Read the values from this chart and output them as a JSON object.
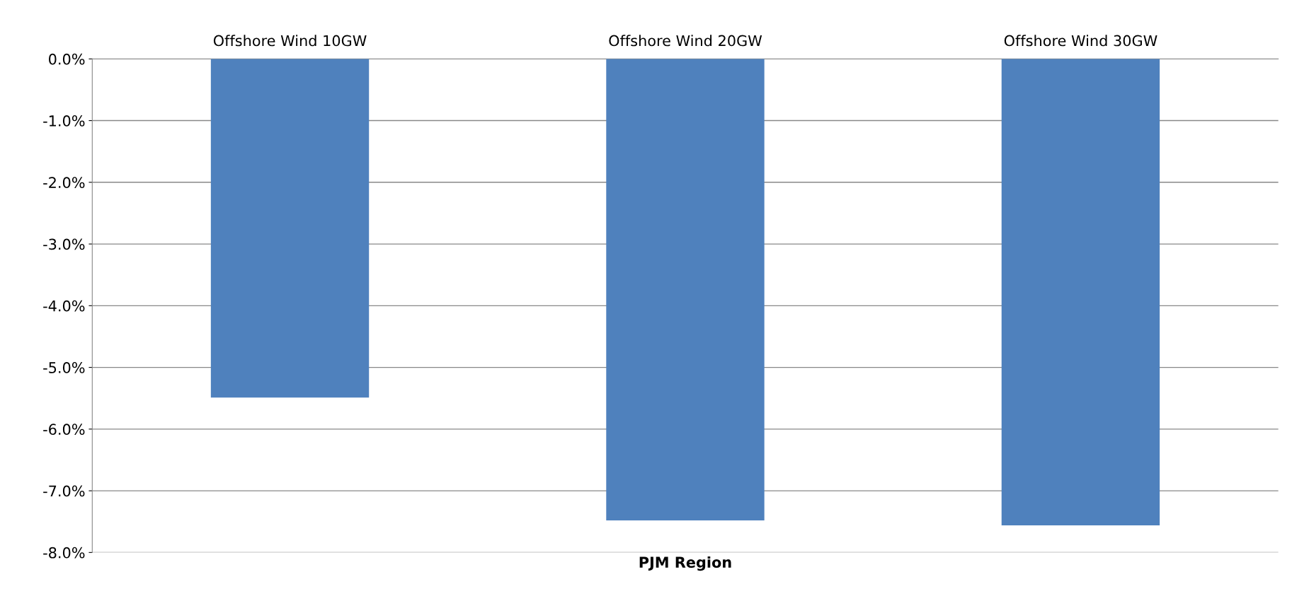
{
  "chart_data": {
    "type": "bar",
    "xlabel": "PJM Region",
    "categories": [
      "Offshore Wind 10GW",
      "Offshore Wind 20GW",
      "Offshore Wind 30GW"
    ],
    "values": [
      -5.49,
      -7.48,
      -7.56
    ],
    "color": "#4f81bd",
    "ylim": [
      -8,
      0
    ],
    "yticks": [
      {
        "value": 0,
        "label": "0.0%"
      },
      {
        "value": -1,
        "label": "-1.0%"
      },
      {
        "value": -2,
        "label": "-2.0%"
      },
      {
        "value": -3,
        "label": "-3.0%"
      },
      {
        "value": -4,
        "label": "-4.0%"
      },
      {
        "value": -5,
        "label": "-5.0%"
      },
      {
        "value": -6,
        "label": "-6.0%"
      },
      {
        "value": -7,
        "label": "-7.0%"
      },
      {
        "value": -8,
        "label": "-8.0%"
      }
    ],
    "grid": "y",
    "legend": false
  }
}
